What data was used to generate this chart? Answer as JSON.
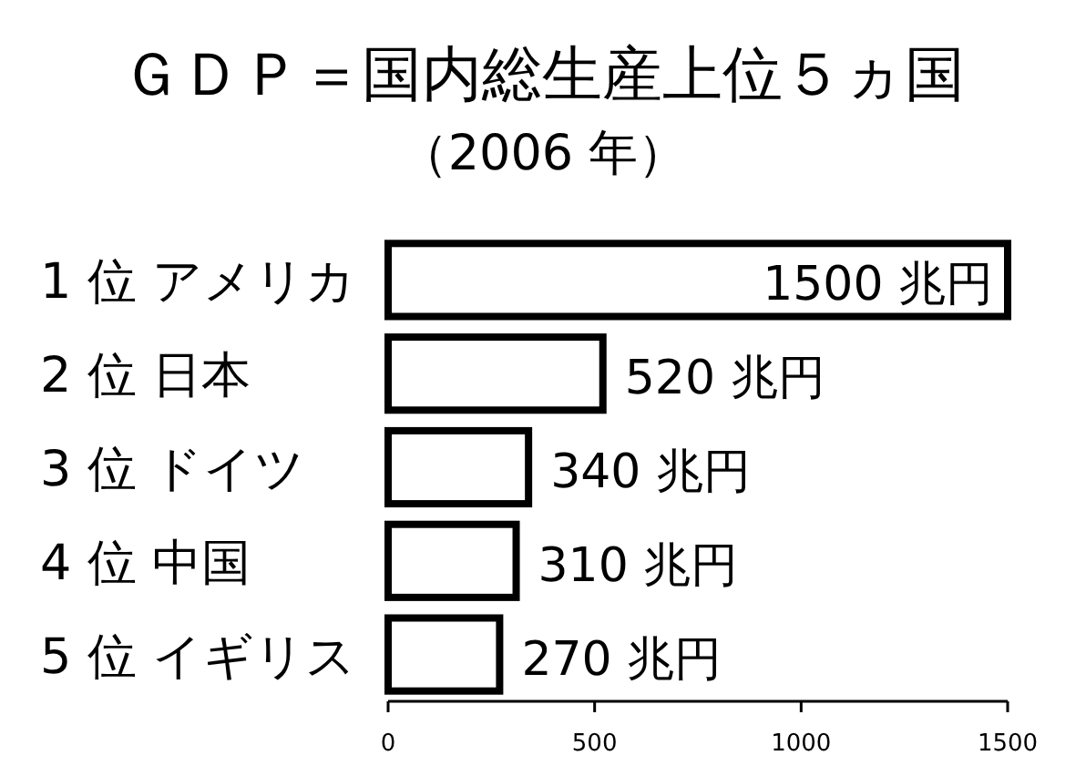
{
  "chart_data": {
    "type": "bar",
    "orientation": "horizontal",
    "title": "ＧＤＰ＝国内総生産上位５ヵ国",
    "subtitle": "（2006 年）",
    "categories": [
      "1 位 アメリカ",
      "2 位 日本",
      "3 位 ドイツ",
      "4 位 中国",
      "5 位 イギリス"
    ],
    "values": [
      1500,
      520,
      340,
      310,
      270
    ],
    "value_labels": [
      "1500 兆円",
      "520 兆円",
      "340 兆円",
      "310 兆円",
      "270 兆円"
    ],
    "color": "#ffffff",
    "xlim": [
      0,
      1500
    ],
    "xticks": [
      0,
      500,
      1000,
      1500
    ],
    "grid": false
  }
}
